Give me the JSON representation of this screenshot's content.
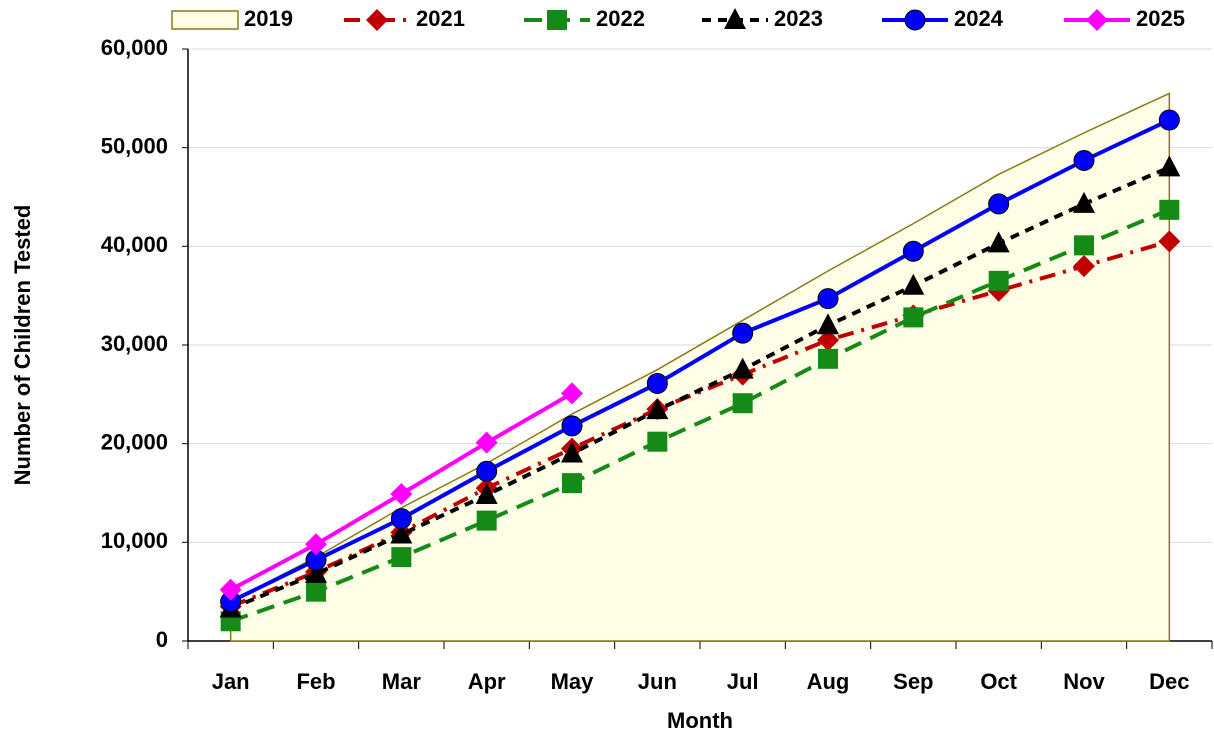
{
  "chart_data": {
    "type": "line",
    "x_label": "Month",
    "y_label": "Number of Children Tested",
    "categories": [
      "Jan",
      "Feb",
      "Mar",
      "Apr",
      "May",
      "Jun",
      "Jul",
      "Aug",
      "Sep",
      "Oct",
      "Nov",
      "Dec"
    ],
    "ylim": [
      0,
      60000
    ],
    "yticks": [
      0,
      {
        "value": 10000,
        "label": "10,000"
      },
      {
        "value": 20000,
        "label": "20,000"
      },
      {
        "value": 30000,
        "label": "30,000"
      },
      {
        "value": 40000,
        "label": "40,000"
      },
      {
        "value": 50000,
        "label": "50,000"
      },
      {
        "value": 60000,
        "label": "60,000"
      }
    ],
    "grid": true,
    "legend": "top",
    "series": [
      {
        "name": "2019",
        "color": "#8b7a1a",
        "fill": "#fefde6",
        "style": "area",
        "values": [
          4000,
          8500,
          13500,
          18000,
          23000,
          27500,
          32500,
          37500,
          42300,
          47300,
          51500,
          55500
        ]
      },
      {
        "name": "2021",
        "color": "#c00000",
        "style": "dashdot",
        "marker": "diamond",
        "values": [
          3500,
          7000,
          11000,
          15500,
          19500,
          23500,
          27000,
          30500,
          33000,
          35500,
          38000,
          40500
        ]
      },
      {
        "name": "2022",
        "color": "#168a16",
        "style": "dash",
        "marker": "square",
        "values": [
          2000,
          5000,
          8500,
          12200,
          16000,
          20200,
          24100,
          28600,
          32800,
          36500,
          40100,
          43700
        ]
      },
      {
        "name": "2023",
        "color": "#000000",
        "style": "shortdash",
        "marker": "triangle",
        "values": [
          3300,
          6800,
          10800,
          14800,
          19000,
          23400,
          27500,
          32000,
          36000,
          40300,
          44300,
          48000
        ]
      },
      {
        "name": "2024",
        "color": "#0000ff",
        "style": "solid",
        "marker": "circle",
        "values": [
          4000,
          8200,
          12400,
          17200,
          21800,
          26100,
          31200,
          34700,
          39500,
          44300,
          48700,
          52800
        ]
      },
      {
        "name": "2025",
        "color": "#ff00ff",
        "style": "solid",
        "marker": "diamond",
        "values": [
          5200,
          9800,
          14900,
          20100,
          25100,
          null,
          null,
          null,
          null,
          null,
          null,
          null
        ]
      }
    ]
  }
}
